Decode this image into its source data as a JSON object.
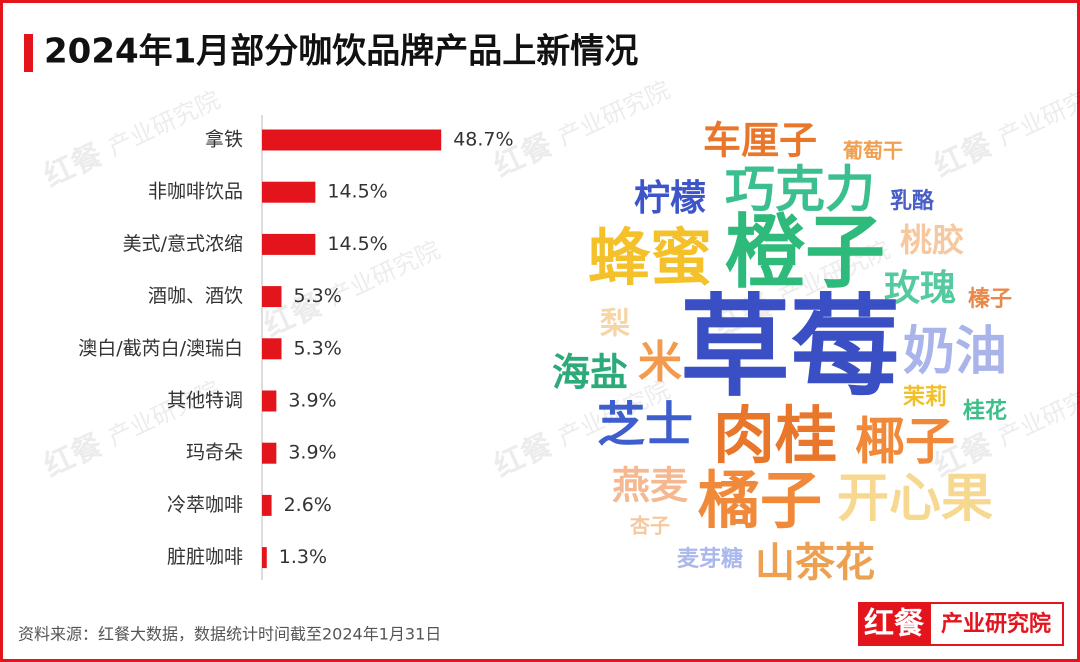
{
  "chart_data": [
    {
      "type": "bar",
      "orientation": "horizontal",
      "title": "2024年1月部分咖饮品牌产品上新情况",
      "categories": [
        "拿铁",
        "非咖啡饮品",
        "美式/意式浓缩",
        "酒咖、酒饮",
        "澳白/截芮白/澳瑞白",
        "其他特调",
        "玛奇朵",
        "冷萃咖啡",
        "脏脏咖啡"
      ],
      "values": [
        48.7,
        14.5,
        14.5,
        5.3,
        5.3,
        3.9,
        3.9,
        2.6,
        1.3
      ],
      "value_labels": [
        "48.7%",
        "14.5%",
        "14.5%",
        "5.3%",
        "5.3%",
        "3.9%",
        "3.9%",
        "2.6%",
        "1.3%"
      ],
      "color": "#e3141c",
      "xlim": [
        0,
        100
      ]
    },
    {
      "type": "wordcloud",
      "words": [
        {
          "text": "车厘子",
          "color": "#e8762b"
        },
        {
          "text": "葡萄干",
          "color": "#f0a050"
        },
        {
          "text": "柠檬",
          "color": "#3d55c9"
        },
        {
          "text": "巧克力",
          "color": "#3bbf8e"
        },
        {
          "text": "乳酪",
          "color": "#4a5ec8"
        },
        {
          "text": "蜂蜜",
          "color": "#f4c12b"
        },
        {
          "text": "橙子",
          "color": "#2dba7a"
        },
        {
          "text": "桃胶",
          "color": "#f5c8a0"
        },
        {
          "text": "玫瑰",
          "color": "#55c9a0"
        },
        {
          "text": "榛子",
          "color": "#e8894a"
        },
        {
          "text": "梨",
          "color": "#f7d6a5"
        },
        {
          "text": "草莓",
          "color": "#3a4fc4"
        },
        {
          "text": "奶油",
          "color": "#a9b4ea"
        },
        {
          "text": "海盐",
          "color": "#2daa7a"
        },
        {
          "text": "米",
          "color": "#f29b4d"
        },
        {
          "text": "茉莉",
          "color": "#f0c02a"
        },
        {
          "text": "桂花",
          "color": "#3cbf8a"
        },
        {
          "text": "芝士",
          "color": "#3e5ecd"
        },
        {
          "text": "肉桂",
          "color": "#e8762b"
        },
        {
          "text": "椰子",
          "color": "#f08a3a"
        },
        {
          "text": "燕麦",
          "color": "#f5b890"
        },
        {
          "text": "橘子",
          "color": "#f08a3a"
        },
        {
          "text": "开心果",
          "color": "#f7d890"
        },
        {
          "text": "杏子",
          "color": "#f5c8a0"
        },
        {
          "text": "麦芽糖",
          "color": "#aab8ec"
        },
        {
          "text": "山茶花",
          "color": "#eda050"
        }
      ]
    }
  ],
  "source": "资料来源：红餐大数据，数据统计时间截至2024年1月31日",
  "logo": {
    "brand": "红餐",
    "unit": "产业研究院"
  }
}
